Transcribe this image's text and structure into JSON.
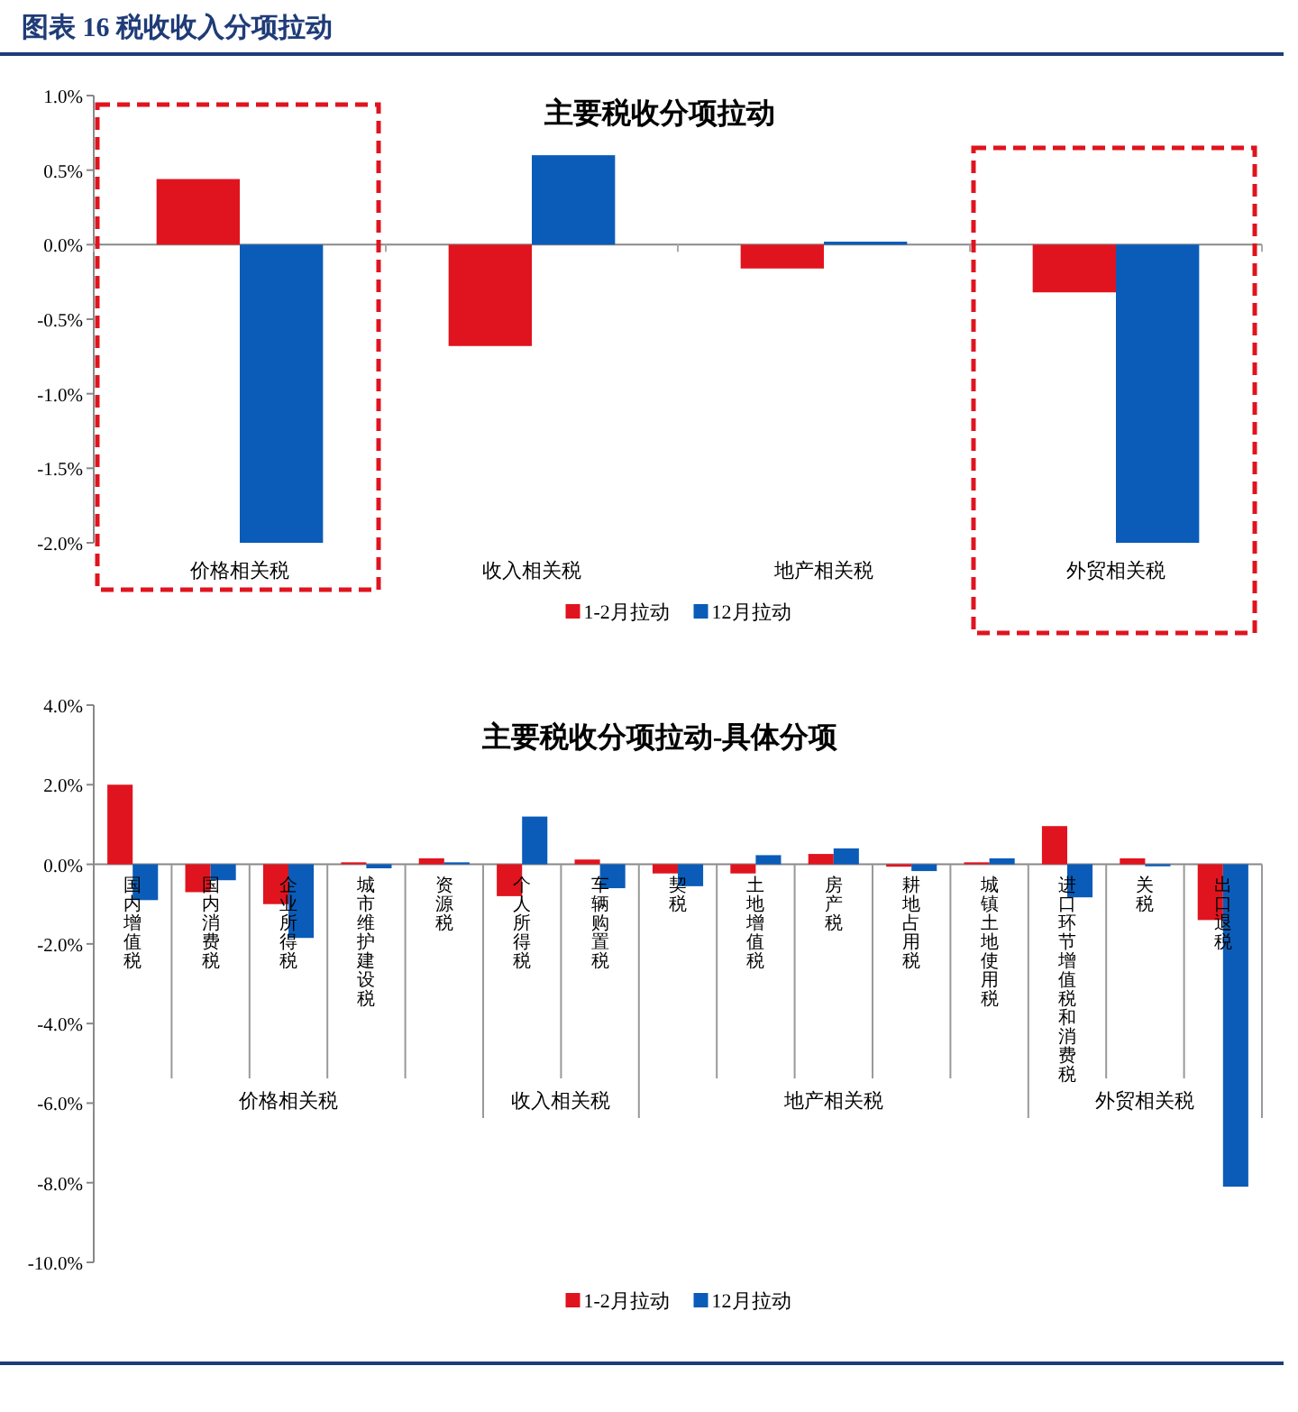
{
  "chart_data": [
    {
      "type": "bar",
      "title": "主要税收分项拉动",
      "annotations": [
        "图表 16 税收收入分项拉动"
      ],
      "categories": [
        "价格相关税",
        "收入相关税",
        "地产相关税",
        "外贸相关税"
      ],
      "series": [
        {
          "name": "1-2月拉动",
          "color": "#e0141e",
          "values": [
            0.44,
            -0.68,
            -0.16,
            -0.32
          ]
        },
        {
          "name": "12月拉动",
          "color": "#0a5cb8",
          "values": [
            -2.0,
            0.6,
            0.02,
            -2.0
          ]
        }
      ],
      "ylim": [
        -2,
        1
      ],
      "yticks": [
        {
          "value": 1,
          "label": "1.0%"
        },
        {
          "value": 0.5,
          "label": "0.5%"
        },
        {
          "value": 0,
          "label": "0.0%"
        },
        {
          "value": -0.5,
          "label": "-0.5%"
        },
        {
          "value": -1,
          "label": "-1.0%"
        },
        {
          "value": -1.5,
          "label": "-1.5%"
        },
        {
          "value": -2,
          "label": "-2.0%"
        }
      ],
      "legend": "bottom"
    },
    {
      "type": "bar",
      "title": "主要税收分项拉动-具体分项",
      "categories": [
        "国内增值税",
        "国内消费税",
        "企业所得税",
        "城市维护建设税",
        "资源税",
        "个人所得税",
        "车辆购置税",
        "契税",
        "土地增值税",
        "房产税",
        "耕地占用税",
        "城镇土地使用税",
        "进口环节增值税和消费税",
        "关税",
        "出口退税"
      ],
      "series": [
        {
          "name": "1-2月拉动",
          "color": "#e0141e",
          "values": [
            2.0,
            -0.7,
            -1.0,
            0.05,
            0.15,
            -0.8,
            0.12,
            -0.23,
            -0.23,
            0.26,
            -0.06,
            0.05,
            0.96,
            0.15,
            -1.4
          ]
        },
        {
          "name": "12月拉动",
          "color": "#0a5cb8",
          "values": [
            -0.9,
            -0.4,
            -1.85,
            -0.1,
            0.05,
            1.2,
            -0.6,
            -0.55,
            0.23,
            0.4,
            -0.17,
            0.15,
            -0.83,
            -0.05,
            -8.1
          ]
        }
      ],
      "annotations": [
        "价格相关税",
        "收入相关税",
        "地产相关税",
        "外贸相关税"
      ],
      "ylim": [
        -10,
        4
      ],
      "yticks": [
        {
          "value": 4,
          "label": "4.0%"
        },
        {
          "value": 2,
          "label": "2.0%"
        },
        {
          "value": 0,
          "label": "0.0%"
        },
        {
          "value": -2,
          "label": "-2.0%"
        },
        {
          "value": -4,
          "label": "-4.0%"
        },
        {
          "value": -6,
          "label": "-6.0%"
        },
        {
          "value": -8,
          "label": "-8.0%"
        },
        {
          "value": -10,
          "label": "-10.0%"
        }
      ],
      "legend": "bottom"
    }
  ]
}
